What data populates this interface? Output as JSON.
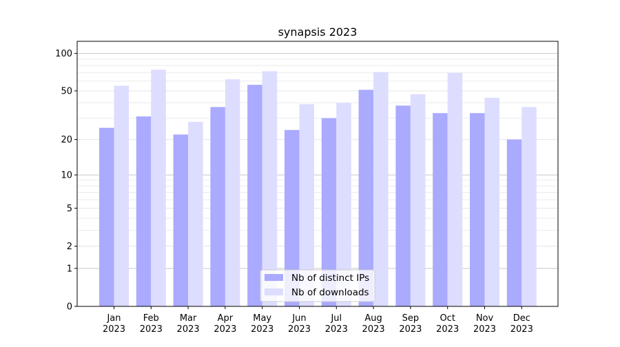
{
  "chart_data": {
    "type": "bar",
    "title": "synapsis 2023",
    "xlabel": "",
    "ylabel": "",
    "yscale": "symlog (log10(1+y))",
    "ylim": [
      0,
      125
    ],
    "yticks": [
      0,
      1,
      2,
      5,
      10,
      20,
      50,
      100
    ],
    "ytick_labels": [
      "0",
      "1",
      "2",
      "5",
      "10",
      "20",
      "50",
      "100"
    ],
    "grid": true,
    "legend_position": "bottom-center",
    "categories": [
      [
        "Jan",
        "2023"
      ],
      [
        "Feb",
        "2023"
      ],
      [
        "Mar",
        "2023"
      ],
      [
        "Apr",
        "2023"
      ],
      [
        "May",
        "2023"
      ],
      [
        "Jun",
        "2023"
      ],
      [
        "Jul",
        "2023"
      ],
      [
        "Aug",
        "2023"
      ],
      [
        "Sep",
        "2023"
      ],
      [
        "Oct",
        "2023"
      ],
      [
        "Nov",
        "2023"
      ],
      [
        "Dec",
        "2023"
      ]
    ],
    "series": [
      {
        "name": "Nb of distinct IPs",
        "color": "#aaaaff",
        "values": [
          25,
          31,
          22,
          37,
          56,
          24,
          30,
          51,
          38,
          33,
          33,
          20
        ]
      },
      {
        "name": "Nb of downloads",
        "color": "#ddddff",
        "values": [
          55,
          74,
          28,
          62,
          72,
          39,
          40,
          71,
          47,
          70,
          44,
          37
        ]
      }
    ]
  }
}
